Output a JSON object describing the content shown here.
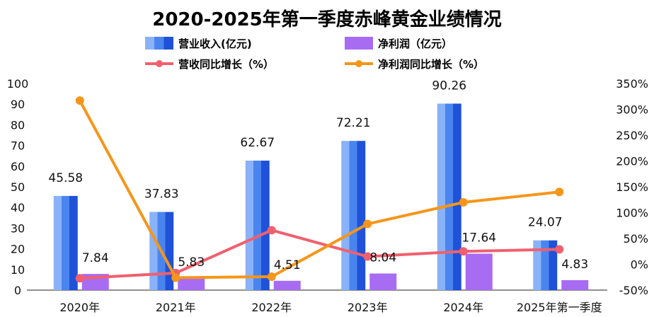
{
  "chart_data": {
    "type": "bar",
    "title": "2020-2025年第一季度赤峰黄金业绩情况",
    "categories": [
      "2020年",
      "2021年",
      "2022年",
      "2023年",
      "2024年",
      "2025年第一季度"
    ],
    "series": [
      {
        "name": "营业收入(亿元)",
        "kind": "bar",
        "axis": "left",
        "values": [
          45.58,
          37.83,
          62.67,
          72.21,
          90.26,
          24.07
        ],
        "color": "#2f6de8"
      },
      {
        "name": "净利润（亿元）",
        "kind": "bar",
        "axis": "left",
        "values": [
          7.84,
          5.83,
          4.51,
          8.04,
          17.64,
          4.83
        ],
        "color": "#a86cf2"
      },
      {
        "name": "营收同比增长（%）",
        "kind": "line",
        "axis": "right",
        "values": [
          -27,
          -17,
          66,
          15,
          25,
          29
        ],
        "color": "#f0606e"
      },
      {
        "name": "净利润同比增长（%）",
        "kind": "line",
        "axis": "right",
        "values": [
          317,
          -26,
          -24,
          78,
          120,
          140
        ],
        "color": "#f5961a"
      }
    ],
    "ylim_left": [
      0,
      100
    ],
    "yticks_left": [
      "0",
      "10",
      "20",
      "30",
      "40",
      "50",
      "60",
      "70",
      "80",
      "90",
      "100"
    ],
    "ylim_right": [
      -50,
      350
    ],
    "yticks_right": [
      "-50%",
      "0%",
      "50%",
      "100%",
      "150%",
      "200%",
      "250%",
      "300%",
      "350%"
    ],
    "legend_position": "top",
    "grid": false
  }
}
